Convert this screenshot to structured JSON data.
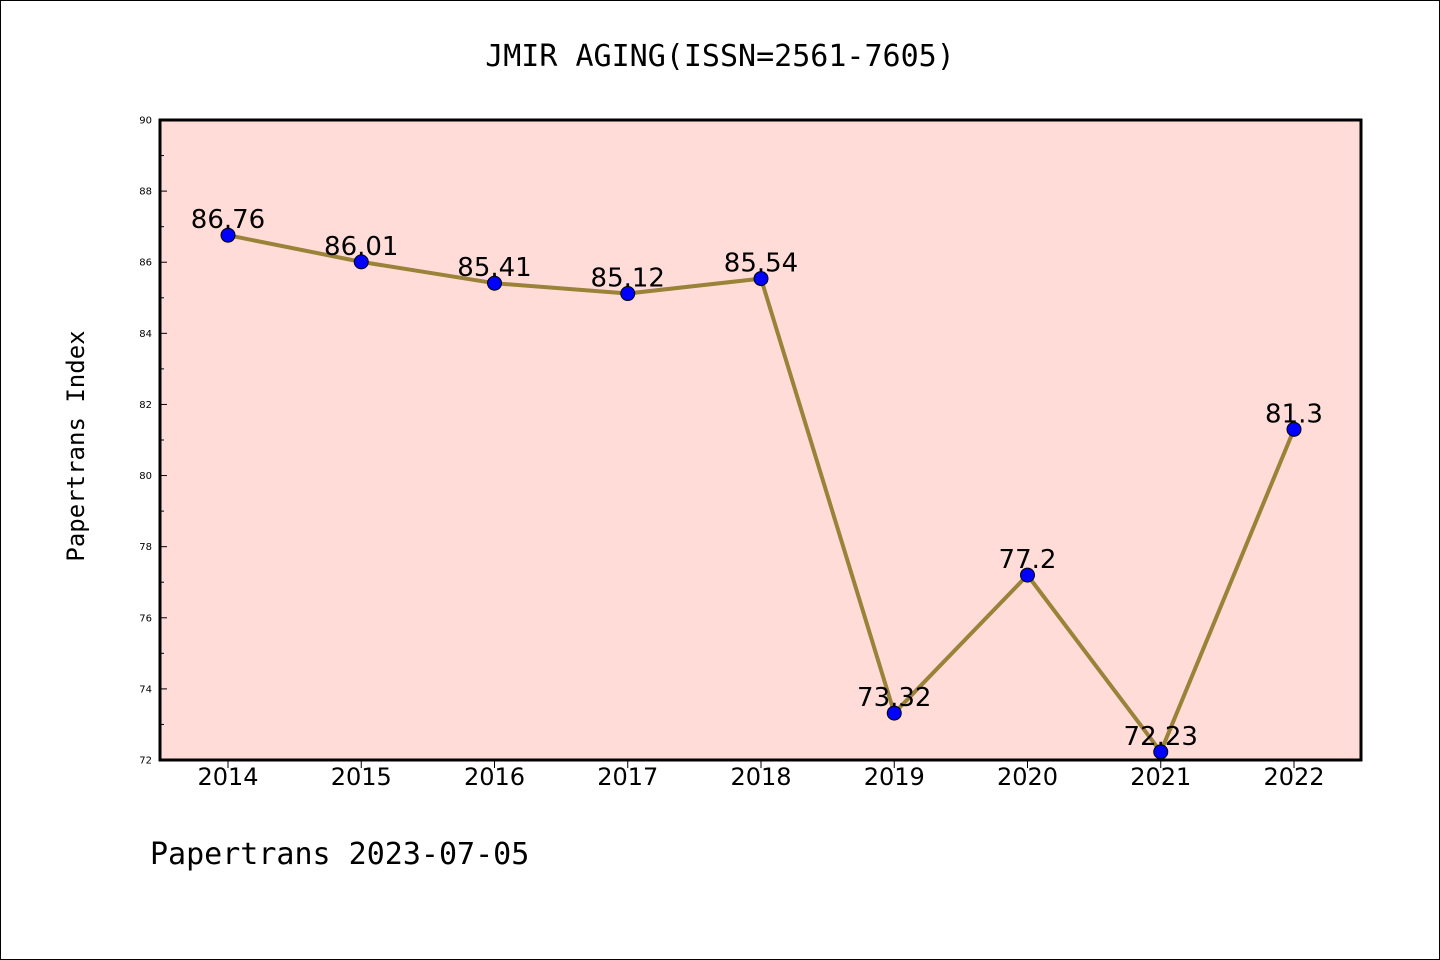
{
  "chart_data": {
    "type": "line",
    "title": "JMIR AGING(ISSN=2561-7605)",
    "ylabel": "Papertrans Index",
    "xlabel": "",
    "footer": "Papertrans 2023-07-05",
    "categories": [
      "2014",
      "2015",
      "2016",
      "2017",
      "2018",
      "2019",
      "2020",
      "2021",
      "2022"
    ],
    "values": [
      86.76,
      86.01,
      85.41,
      85.12,
      85.54,
      73.32,
      77.2,
      72.23,
      81.3
    ],
    "data_labels": [
      "86.76",
      "86.01",
      "85.41",
      "85.12",
      "85.54",
      "73.32",
      "77.2",
      "72.23",
      "81.3"
    ],
    "ylim": [
      72,
      90
    ],
    "yticks": [
      72,
      74,
      76,
      78,
      80,
      82,
      84,
      86,
      88,
      90
    ],
    "ytick_labels": [
      "72",
      "74",
      "76",
      "78",
      "80",
      "82",
      "84",
      "86",
      "88",
      "90"
    ],
    "grid": false,
    "legend": "none",
    "colors": {
      "plot_background": "#FFDCD8",
      "line": "#9A8238",
      "marker": "#0000FF",
      "marker_edge": "#000000",
      "axes": "#000000"
    }
  }
}
